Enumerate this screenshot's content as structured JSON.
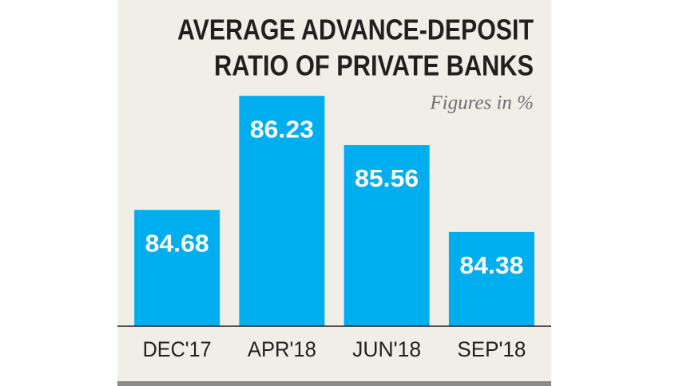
{
  "chart_data": {
    "type": "bar",
    "title": [
      "AVERAGE ADVANCE-DEPOSIT",
      "RATIO OF PRIVATE BANKS"
    ],
    "subtitle": "Figures in %",
    "categories": [
      "DEC'17",
      "APR'18",
      "JUN'18",
      "SEP'18"
    ],
    "values": [
      84.68,
      86.23,
      85.56,
      84.38
    ],
    "color": "#00aeef",
    "ylim": [
      83.1,
      86.6
    ]
  }
}
